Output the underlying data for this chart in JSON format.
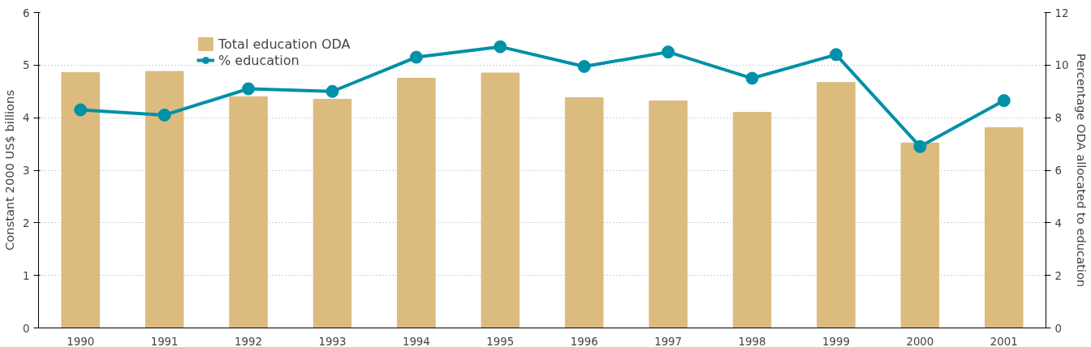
{
  "chart_data": {
    "type": "bar",
    "categories": [
      "1990",
      "1991",
      "1992",
      "1993",
      "1994",
      "1995",
      "1996",
      "1997",
      "1998",
      "1999",
      "2000",
      "2001"
    ],
    "ylabel": "Constant 2000 US$ billions",
    "y2label": "Percentage ODA allocated to education",
    "ylim": [
      0,
      6
    ],
    "yticks": [
      0,
      1,
      2,
      3,
      4,
      5,
      6
    ],
    "y2lim": [
      0,
      12
    ],
    "y2ticks": [
      0,
      2,
      4,
      6,
      8,
      10,
      12
    ],
    "grid": "y",
    "legend": "top left",
    "marker": "circle",
    "line_style": "solid",
    "series": [
      {
        "name": "Total education ODA",
        "color": "#dcbb7f",
        "values": [
          4.86,
          4.88,
          4.4,
          4.35,
          4.75,
          4.85,
          4.38,
          4.32,
          4.1,
          4.67,
          3.52,
          3.81
        ]
      },
      {
        "name": "% education",
        "type": "line",
        "axis": "y2",
        "color": "#0090a8",
        "values": [
          8.3,
          8.1,
          9.1,
          9.0,
          10.3,
          10.7,
          9.95,
          10.5,
          9.5,
          10.4,
          6.9,
          8.65
        ]
      }
    ]
  }
}
